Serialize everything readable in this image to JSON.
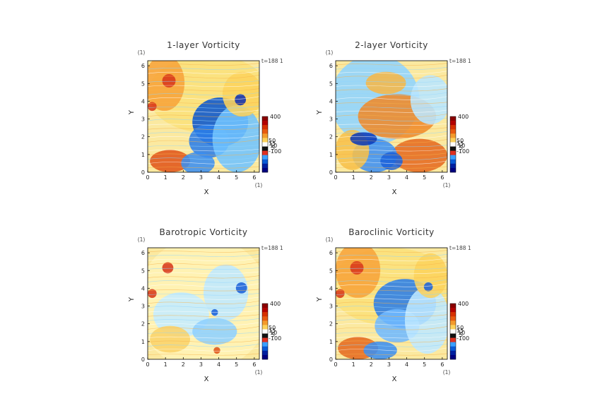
{
  "chart_data": [
    {
      "type": "heatmap",
      "title": "1-layer Vorticity",
      "xlabel": "X",
      "ylabel": "Y",
      "x_unit_label": "(1)",
      "y_unit_label": "(1)",
      "time_label": "t=188 1",
      "xlim": [
        0,
        6.2832
      ],
      "ylim": [
        0,
        6.2832
      ],
      "xticks": [
        "0",
        "1",
        "2",
        "3",
        "4",
        "5",
        "6"
      ],
      "yticks": [
        "0",
        "1",
        "2",
        "3",
        "4",
        "5",
        "6"
      ],
      "colorbar_labels": [
        "400",
        "50",
        "15",
        "10",
        "5",
        "-100"
      ],
      "colorbar_colors": [
        "#8b0000",
        "#b30000",
        "#d73000",
        "#e85a10",
        "#f39a2c",
        "#fcd15a",
        "#ffffff",
        "#111111",
        "#e03020",
        "#3aa0ff",
        "#0a5bd6",
        "#0020a0",
        "#000080"
      ]
    },
    {
      "type": "heatmap",
      "title": "2-layer Vorticity",
      "xlabel": "X",
      "ylabel": "Y",
      "x_unit_label": "(1)",
      "y_unit_label": "(1)",
      "time_label": "t=188 1",
      "xlim": [
        0,
        6.2832
      ],
      "ylim": [
        0,
        6.2832
      ],
      "xticks": [
        "0",
        "1",
        "2",
        "3",
        "4",
        "5",
        "6"
      ],
      "yticks": [
        "0",
        "1",
        "2",
        "3",
        "4",
        "5",
        "6"
      ],
      "colorbar_labels": [
        "400",
        "50",
        "15",
        "10",
        "5",
        "-100"
      ],
      "colorbar_colors": [
        "#8b0000",
        "#b30000",
        "#d73000",
        "#e85a10",
        "#f39a2c",
        "#fcd15a",
        "#ffffff",
        "#111111",
        "#e03020",
        "#3aa0ff",
        "#0a5bd6",
        "#0020a0",
        "#000080"
      ]
    },
    {
      "type": "heatmap",
      "title": "Barotropic Vorticity",
      "xlabel": "X",
      "ylabel": "Y",
      "x_unit_label": "(1)",
      "y_unit_label": "(1)",
      "time_label": "t=188 1",
      "xlim": [
        0,
        6.2832
      ],
      "ylim": [
        0,
        6.2832
      ],
      "xticks": [
        "0",
        "1",
        "2",
        "3",
        "4",
        "5",
        "6"
      ],
      "yticks": [
        "0",
        "1",
        "2",
        "3",
        "4",
        "5",
        "6"
      ],
      "colorbar_labels": [
        "400",
        "50",
        "15",
        "10",
        "5",
        "-100"
      ],
      "colorbar_colors": [
        "#8b0000",
        "#b30000",
        "#d73000",
        "#e85a10",
        "#f39a2c",
        "#fcd15a",
        "#ffffff",
        "#111111",
        "#e03020",
        "#3aa0ff",
        "#0a5bd6",
        "#0020a0",
        "#000080"
      ]
    },
    {
      "type": "heatmap",
      "title": "Baroclinic Vorticity",
      "xlabel": "X",
      "ylabel": "Y",
      "x_unit_label": "(1)",
      "y_unit_label": "(1)",
      "time_label": "t=188 1",
      "xlim": [
        0,
        6.2832
      ],
      "ylim": [
        0,
        6.2832
      ],
      "xticks": [
        "0",
        "1",
        "2",
        "3",
        "4",
        "5",
        "6"
      ],
      "yticks": [
        "0",
        "1",
        "2",
        "3",
        "4",
        "5",
        "6"
      ],
      "colorbar_labels": [
        "400",
        "50",
        "15",
        "10",
        "5",
        "-100"
      ],
      "colorbar_colors": [
        "#8b0000",
        "#b30000",
        "#d73000",
        "#e85a10",
        "#f39a2c",
        "#fcd15a",
        "#ffffff",
        "#111111",
        "#e03020",
        "#3aa0ff",
        "#0a5bd6",
        "#0020a0",
        "#000080"
      ]
    }
  ]
}
